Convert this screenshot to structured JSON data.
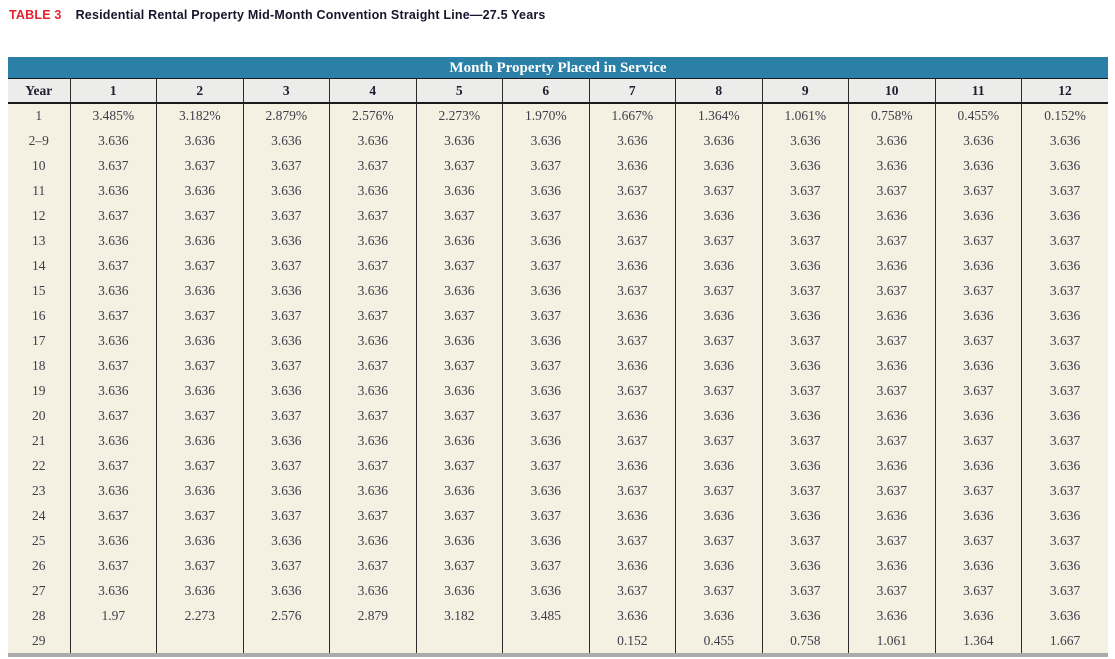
{
  "title": {
    "tag": "TABLE 3",
    "text": "Residential Rental Property Mid-Month Convention Straight Line—27.5 Years"
  },
  "table": {
    "banner": "Month Property Placed in Service",
    "year_header": "Year",
    "month_headers": [
      "1",
      "2",
      "3",
      "4",
      "5",
      "6",
      "7",
      "8",
      "9",
      "10",
      "11",
      "12"
    ],
    "rows": [
      {
        "year": "1",
        "values": [
          "3.485%",
          "3.182%",
          "2.879%",
          "2.576%",
          "2.273%",
          "1.970%",
          "1.667%",
          "1.364%",
          "1.061%",
          "0.758%",
          "0.455%",
          "0.152%"
        ]
      },
      {
        "year": "2–9",
        "values": [
          "3.636",
          "3.636",
          "3.636",
          "3.636",
          "3.636",
          "3.636",
          "3.636",
          "3.636",
          "3.636",
          "3.636",
          "3.636",
          "3.636"
        ]
      },
      {
        "year": "10",
        "values": [
          "3.637",
          "3.637",
          "3.637",
          "3.637",
          "3.637",
          "3.637",
          "3.636",
          "3.636",
          "3.636",
          "3.636",
          "3.636",
          "3.636"
        ]
      },
      {
        "year": "11",
        "values": [
          "3.636",
          "3.636",
          "3.636",
          "3.636",
          "3.636",
          "3.636",
          "3.637",
          "3.637",
          "3.637",
          "3.637",
          "3.637",
          "3.637"
        ]
      },
      {
        "year": "12",
        "values": [
          "3.637",
          "3.637",
          "3.637",
          "3.637",
          "3.637",
          "3.637",
          "3.636",
          "3.636",
          "3.636",
          "3.636",
          "3.636",
          "3.636"
        ]
      },
      {
        "year": "13",
        "values": [
          "3.636",
          "3.636",
          "3.636",
          "3.636",
          "3.636",
          "3.636",
          "3.637",
          "3.637",
          "3.637",
          "3.637",
          "3.637",
          "3.637"
        ]
      },
      {
        "year": "14",
        "values": [
          "3.637",
          "3.637",
          "3.637",
          "3.637",
          "3.637",
          "3.637",
          "3.636",
          "3.636",
          "3.636",
          "3.636",
          "3.636",
          "3.636"
        ]
      },
      {
        "year": "15",
        "values": [
          "3.636",
          "3.636",
          "3.636",
          "3.636",
          "3.636",
          "3.636",
          "3.637",
          "3.637",
          "3.637",
          "3.637",
          "3.637",
          "3.637"
        ]
      },
      {
        "year": "16",
        "values": [
          "3.637",
          "3.637",
          "3.637",
          "3.637",
          "3.637",
          "3.637",
          "3.636",
          "3.636",
          "3.636",
          "3.636",
          "3.636",
          "3.636"
        ]
      },
      {
        "year": "17",
        "values": [
          "3.636",
          "3.636",
          "3.636",
          "3.636",
          "3.636",
          "3.636",
          "3.637",
          "3.637",
          "3.637",
          "3.637",
          "3.637",
          "3.637"
        ]
      },
      {
        "year": "18",
        "values": [
          "3.637",
          "3.637",
          "3.637",
          "3.637",
          "3.637",
          "3.637",
          "3.636",
          "3.636",
          "3.636",
          "3.636",
          "3.636",
          "3.636"
        ]
      },
      {
        "year": "19",
        "values": [
          "3.636",
          "3.636",
          "3.636",
          "3.636",
          "3.636",
          "3.636",
          "3.637",
          "3.637",
          "3.637",
          "3.637",
          "3.637",
          "3.637"
        ]
      },
      {
        "year": "20",
        "values": [
          "3.637",
          "3.637",
          "3.637",
          "3.637",
          "3.637",
          "3.637",
          "3.636",
          "3.636",
          "3.636",
          "3.636",
          "3.636",
          "3.636"
        ]
      },
      {
        "year": "21",
        "values": [
          "3.636",
          "3.636",
          "3.636",
          "3.636",
          "3.636",
          "3.636",
          "3.637",
          "3.637",
          "3.637",
          "3.637",
          "3.637",
          "3.637"
        ]
      },
      {
        "year": "22",
        "values": [
          "3.637",
          "3.637",
          "3.637",
          "3.637",
          "3.637",
          "3.637",
          "3.636",
          "3.636",
          "3.636",
          "3.636",
          "3.636",
          "3.636"
        ]
      },
      {
        "year": "23",
        "values": [
          "3.636",
          "3.636",
          "3.636",
          "3.636",
          "3.636",
          "3.636",
          "3.637",
          "3.637",
          "3.637",
          "3.637",
          "3.637",
          "3.637"
        ]
      },
      {
        "year": "24",
        "values": [
          "3.637",
          "3.637",
          "3.637",
          "3.637",
          "3.637",
          "3.637",
          "3.636",
          "3.636",
          "3.636",
          "3.636",
          "3.636",
          "3.636"
        ]
      },
      {
        "year": "25",
        "values": [
          "3.636",
          "3.636",
          "3.636",
          "3.636",
          "3.636",
          "3.636",
          "3.637",
          "3.637",
          "3.637",
          "3.637",
          "3.637",
          "3.637"
        ]
      },
      {
        "year": "26",
        "values": [
          "3.637",
          "3.637",
          "3.637",
          "3.637",
          "3.637",
          "3.637",
          "3.636",
          "3.636",
          "3.636",
          "3.636",
          "3.636",
          "3.636"
        ]
      },
      {
        "year": "27",
        "values": [
          "3.636",
          "3.636",
          "3.636",
          "3.636",
          "3.636",
          "3.636",
          "3.637",
          "3.637",
          "3.637",
          "3.637",
          "3.637",
          "3.637"
        ]
      },
      {
        "year": "28",
        "values": [
          "1.97",
          "2.273",
          "2.576",
          "2.879",
          "3.182",
          "3.485",
          "3.636",
          "3.636",
          "3.636",
          "3.636",
          "3.636",
          "3.636"
        ]
      },
      {
        "year": "29",
        "values": [
          "",
          "",
          "",
          "",
          "",
          "",
          "0.152",
          "0.455",
          "0.758",
          "1.061",
          "1.364",
          "1.667"
        ]
      }
    ]
  },
  "colors": {
    "title_red": "#e5222b",
    "title_dark": "#15152c",
    "accent_teal": "#2a80a7",
    "header_bg": "#ececea",
    "body_bg": "#f5f1e2",
    "border_dark": "#2b2b2b",
    "line_black": "#1a1a1a",
    "cell_text": "#3e3e4a",
    "header_text": "#1e1e32",
    "bottom_bar": "#ababab"
  }
}
